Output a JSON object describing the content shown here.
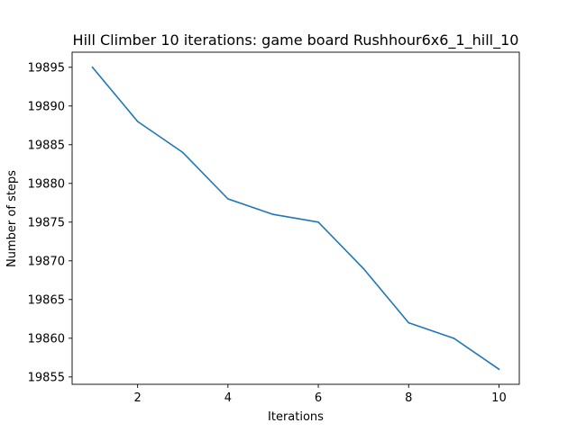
{
  "chart_data": {
    "type": "line",
    "title": "Hill Climber 10 iterations: game board Rushhour6x6_1_hill_10",
    "xlabel": "Iterations",
    "ylabel": "Number of steps",
    "x": [
      1,
      2,
      3,
      4,
      5,
      6,
      7,
      8,
      9,
      10
    ],
    "series": [
      {
        "values": [
          19895,
          19888,
          19884,
          19878,
          19876,
          19875,
          19869,
          19862,
          19860,
          19856
        ],
        "color": "#1f77b4"
      }
    ],
    "xlim": [
      0.55,
      10.45
    ],
    "ylim": [
      19854.05,
      19896.95
    ],
    "xticks": [
      2,
      4,
      6,
      8,
      10
    ],
    "yticks": [
      19855,
      19860,
      19865,
      19870,
      19875,
      19880,
      19885,
      19890,
      19895
    ],
    "grid": false,
    "legend": "none"
  }
}
